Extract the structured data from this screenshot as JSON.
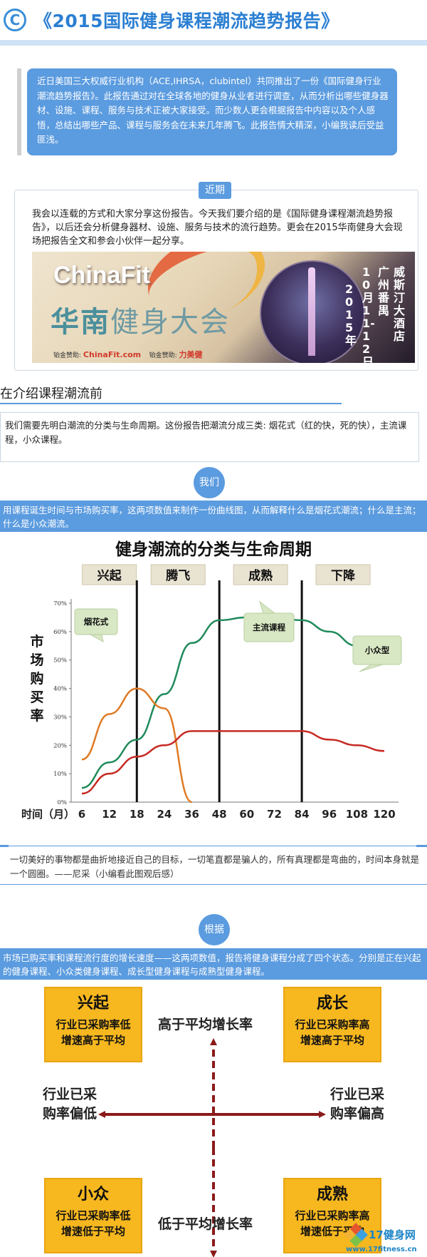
{
  "header": {
    "logo_letter": "C",
    "title": "《2015国际健身课程潮流趋势报告》"
  },
  "intro": {
    "text": "近日美国三大权威行业机构（ACE,IHRSA，clubintel）共同推出了一份《国际健身行业潮流趋势报告》。此报告通过对在全球各地的健身从业者进行调查，从而分析出哪些健身器材、设施、课程、服务与技术正被大家接受。而少数人更会根据报告中内容以及个人感悟，总结出哪些产品、课程与服务会在未来几年腾飞。此报告情大精深，小编我读后受益匪浅。"
  },
  "recent": {
    "tag": "近期",
    "text": "我会以连载的方式和大家分享这份报告。今天我们要介绍的是《国际健身课程潮流趋势报告》，以后还会分析健身器材、设施、服务与技术的流行趋势。更会在2015华南健身大会现场把报告全文和参会小伙伴一起分享。",
    "banner": {
      "brand": "ChinaFit",
      "main_bold": "华南",
      "main_light": "健身大会",
      "vert_venue": "威斯汀大酒店",
      "vert_city": "广州番禺",
      "vert_date": "10月11-12日",
      "vert_year": "2015年",
      "sponsor_label": "铂金赞助:",
      "sponsor_site": "ChinaFit.com",
      "sponsor_label2": "铂金赞助:",
      "sponsor_brand": "力美健"
    }
  },
  "section3": {
    "title": "在介绍课程潮流前",
    "text": "我们需要先明白潮流的分类与生命周期。这份报告把潮流分成三类: 烟花式（红的快，死的快），主流课程，小众课程。"
  },
  "section4": {
    "tag": "我们",
    "text": "用课程诞生时间与市场购买率，这两项数值来制作一份曲线图，从而解释什么是烟花式潮流；什么是主流；什么是小众潮流。"
  },
  "chart_data": {
    "type": "line",
    "title": "健身潮流的分类与生命周期",
    "ylabel": "市场购买率",
    "xlabel": "时间（月）",
    "x": [
      6,
      12,
      18,
      24,
      36,
      48,
      60,
      72,
      84,
      96,
      108,
      120
    ],
    "ylim": [
      0,
      70
    ],
    "yticks": [
      "0%",
      "10%",
      "20%",
      "30%",
      "40%",
      "50%",
      "60%",
      "70%"
    ],
    "phases": [
      "兴起",
      "腾飞",
      "成熟",
      "下降"
    ],
    "phase_dividers": [
      18,
      48,
      84
    ],
    "series": [
      {
        "name": "主流课程",
        "color": "#1f8a5a",
        "points": [
          [
            6,
            5
          ],
          [
            12,
            14
          ],
          [
            18,
            22
          ],
          [
            24,
            38
          ],
          [
            36,
            56
          ],
          [
            48,
            64
          ],
          [
            60,
            65
          ],
          [
            72,
            65
          ],
          [
            84,
            64
          ],
          [
            96,
            60
          ],
          [
            108,
            55
          ],
          [
            120,
            50
          ]
        ]
      },
      {
        "name": "烟花式",
        "color": "#e07a25",
        "points": [
          [
            6,
            15
          ],
          [
            12,
            31
          ],
          [
            18,
            40
          ],
          [
            24,
            33
          ],
          [
            36,
            0
          ]
        ]
      },
      {
        "name": "小众型",
        "color": "#c62a22",
        "points": [
          [
            6,
            3
          ],
          [
            12,
            10
          ],
          [
            18,
            16
          ],
          [
            24,
            20
          ],
          [
            36,
            25
          ],
          [
            48,
            25
          ],
          [
            60,
            25
          ],
          [
            72,
            25
          ],
          [
            84,
            25
          ],
          [
            96,
            22
          ],
          [
            108,
            20
          ],
          [
            120,
            18
          ]
        ]
      }
    ]
  },
  "quote": {
    "text": "一切美好的事物都是曲折地接近自己的目标，一切笔直都是骗人的，所有真理都是弯曲的，时间本身就是一个圆圈。——尼采（小编看此图观后感）"
  },
  "section5": {
    "tag": "根据",
    "text": "市场已购买率和课程流行度的增长速度——这两项数值，报告将健身课程分成了四个状态。分别是正在兴起的健身课程、小众类健身课程、成长型健身课程与成熟型健身课程。"
  },
  "quadrant": {
    "top_label": "高于平均增长率",
    "bottom_label": "低于平均增长率",
    "left_label": [
      "行业已采",
      "购率偏低"
    ],
    "right_label": [
      "行业已采",
      "购率偏高"
    ],
    "boxes": {
      "top_left": {
        "title": "兴起",
        "desc": [
          "行业已采购率低",
          "增速高于平均"
        ]
      },
      "top_right": {
        "title": "成长",
        "desc": [
          "行业已采购率高",
          "增速高于平均"
        ]
      },
      "bottom_left": {
        "title": "小众",
        "desc": [
          "行业已采购率低",
          "增速低于平均"
        ]
      },
      "bottom_right": {
        "title": "成熟",
        "desc": [
          "行业已采购率高",
          "增速低于平均"
        ]
      }
    },
    "arrow_color": "#8b1a1a",
    "box_color": "#f6b71f"
  },
  "watermark": {
    "name": "17健身网",
    "url": "www.17fitness.cn"
  }
}
